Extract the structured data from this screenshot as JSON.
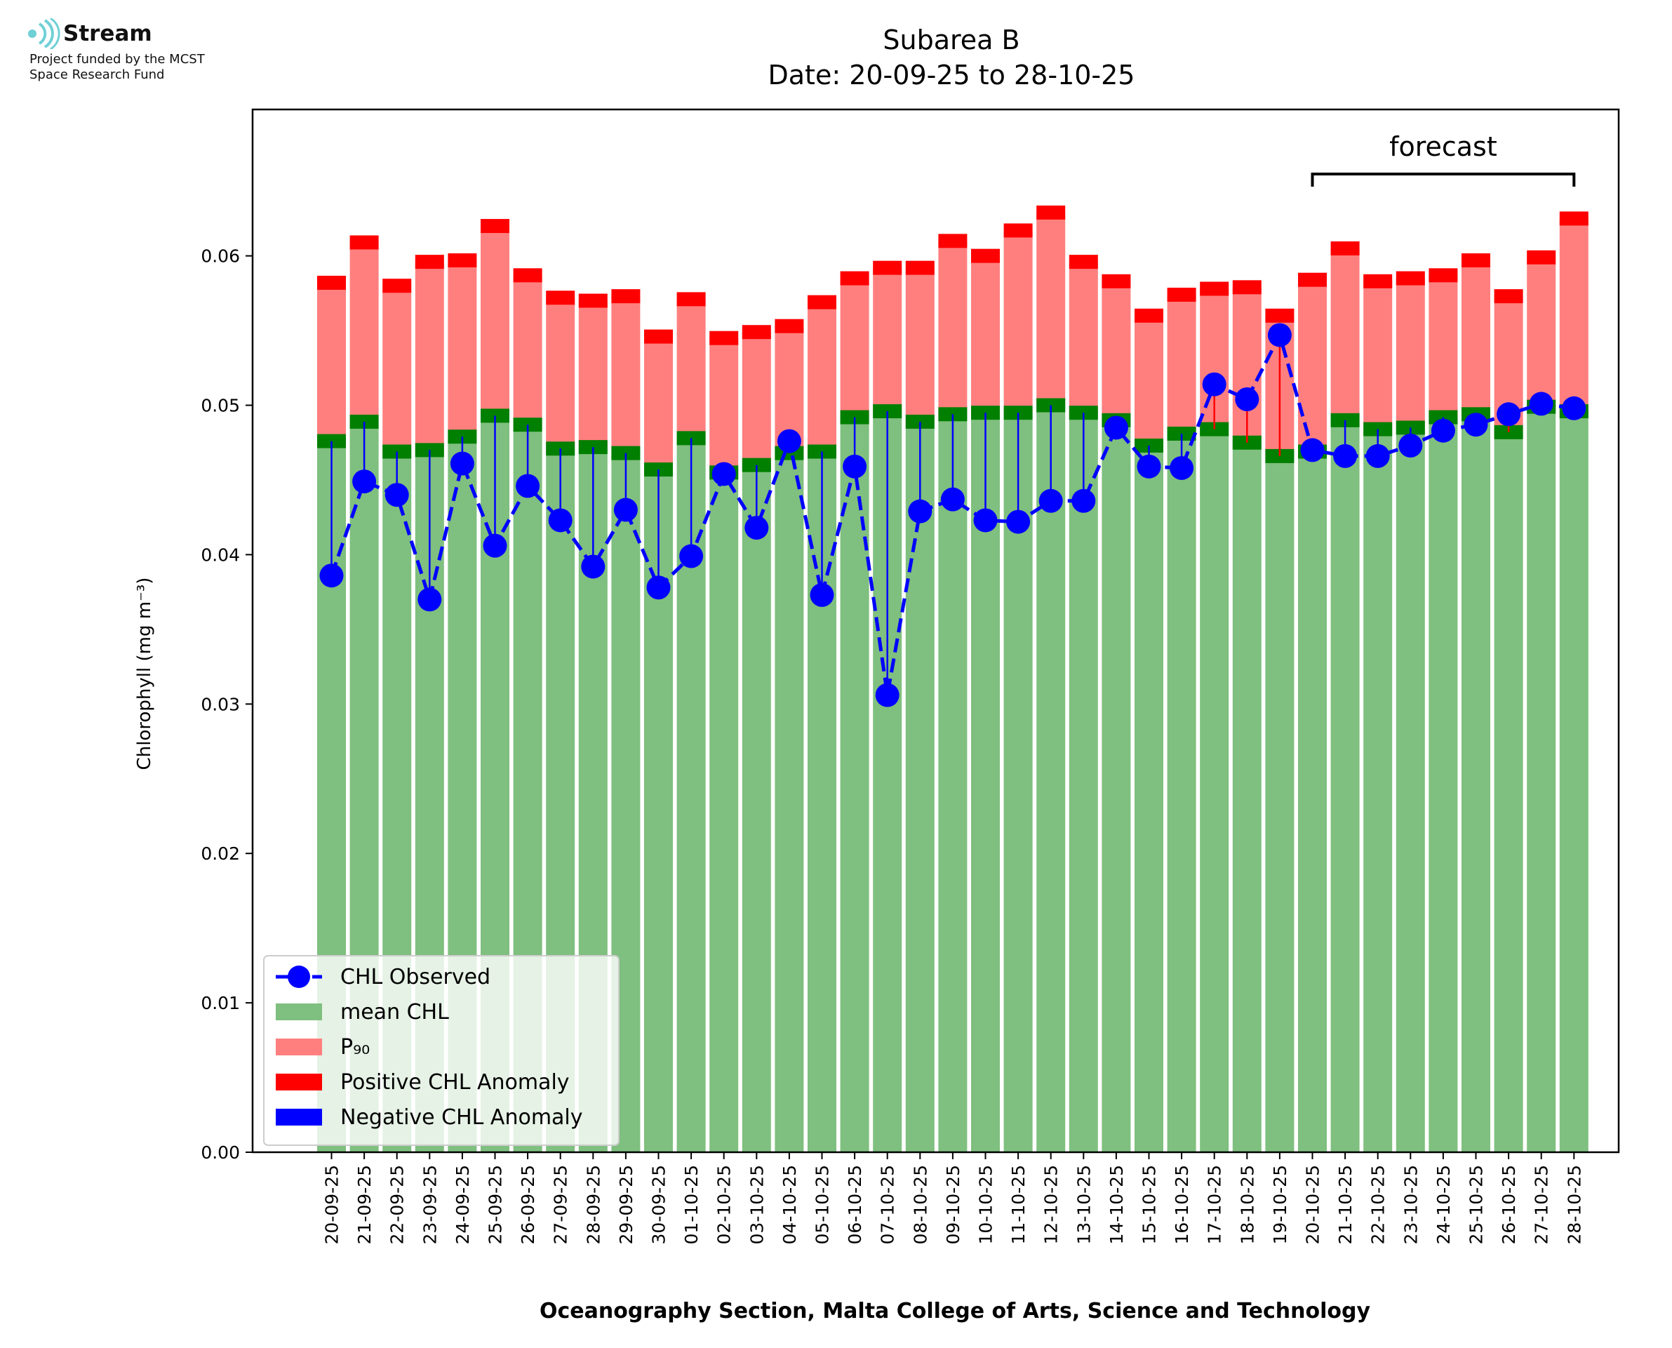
{
  "logo": {
    "name": "Stream",
    "line1": "Project funded by the MCST",
    "line2": "Space Research Fund",
    "accent_color": "#6fd0d6"
  },
  "chart_data": {
    "type": "bar",
    "title": "Subarea B",
    "subtitle": "Date: 20-09-25 to 28-10-25",
    "xlabel": "Oceanography Section, Malta College of Arts, Science and Technology",
    "ylabel": "Chlorophyll (mg m⁻³)",
    "ylim": [
      0,
      0.0698
    ],
    "yticks": [
      0.0,
      0.01,
      0.02,
      0.03,
      0.04,
      0.05,
      0.06
    ],
    "ytick_labels": [
      "0.00",
      "0.01",
      "0.02",
      "0.03",
      "0.04",
      "0.05",
      "0.06"
    ],
    "categories": [
      "20-09-25",
      "21-09-25",
      "22-09-25",
      "23-09-25",
      "24-09-25",
      "25-09-25",
      "26-09-25",
      "27-09-25",
      "28-09-25",
      "29-09-25",
      "30-09-25",
      "01-10-25",
      "02-10-25",
      "03-10-25",
      "04-10-25",
      "05-10-25",
      "06-10-25",
      "07-10-25",
      "08-10-25",
      "09-10-25",
      "10-10-25",
      "11-10-25",
      "12-10-25",
      "13-10-25",
      "14-10-25",
      "15-10-25",
      "16-10-25",
      "17-10-25",
      "18-10-25",
      "19-10-25",
      "20-10-25",
      "21-10-25",
      "22-10-25",
      "23-10-25",
      "24-10-25",
      "25-10-25",
      "26-10-25",
      "27-10-25",
      "28-10-25"
    ],
    "series": [
      {
        "name": "CHL Observed",
        "kind": "line",
        "color": "#0000ff",
        "values": [
          0.0386,
          0.0449,
          0.044,
          0.037,
          0.0461,
          0.0406,
          0.0446,
          0.0423,
          0.0392,
          0.043,
          0.0378,
          0.0399,
          0.0454,
          0.0418,
          0.0476,
          0.0373,
          0.0459,
          0.0306,
          0.0429,
          0.0437,
          0.0423,
          0.0422,
          0.0436,
          0.0436,
          0.0485,
          0.0459,
          0.0458,
          0.0514,
          0.0504,
          0.0547,
          0.047,
          0.0466,
          0.0466,
          0.0473,
          0.0483,
          0.0487,
          0.0494,
          0.0501,
          0.0498
        ]
      },
      {
        "name": "mean CHL",
        "kind": "bar",
        "color": "#7fbf7f",
        "values": [
          0.0476,
          0.0489,
          0.0469,
          0.047,
          0.0479,
          0.0493,
          0.0487,
          0.0471,
          0.0472,
          0.0468,
          0.0457,
          0.0478,
          0.0455,
          0.046,
          0.0468,
          0.0469,
          0.0492,
          0.0496,
          0.0489,
          0.0494,
          0.0495,
          0.0495,
          0.05,
          0.0495,
          0.049,
          0.0473,
          0.0481,
          0.0484,
          0.0475,
          0.0466,
          0.0469,
          0.049,
          0.0484,
          0.0485,
          0.0492,
          0.0494,
          0.0482,
          0.0499,
          0.0496
        ]
      },
      {
        "name": "P₉₀",
        "kind": "bar",
        "color": "#ff7f7f",
        "values": [
          0.0582,
          0.0609,
          0.058,
          0.0596,
          0.0597,
          0.062,
          0.0587,
          0.0572,
          0.057,
          0.0573,
          0.0546,
          0.0571,
          0.0545,
          0.0549,
          0.0553,
          0.0569,
          0.0585,
          0.0592,
          0.0592,
          0.061,
          0.06,
          0.0617,
          0.0629,
          0.0596,
          0.0583,
          0.056,
          0.0574,
          0.0578,
          0.0579,
          0.056,
          0.0584,
          0.0605,
          0.0583,
          0.0585,
          0.0587,
          0.0597,
          0.0573,
          0.0599,
          0.0625
        ]
      },
      {
        "name": "Positive CHL Anomaly",
        "kind": "marker",
        "color": "#ff0000"
      },
      {
        "name": "Negative CHL Anomaly",
        "kind": "marker",
        "color": "#0000ff"
      }
    ],
    "legend": [
      "CHL Observed",
      "mean CHL",
      "P₉₀",
      "Positive CHL Anomaly",
      "Negative CHL Anomaly"
    ],
    "legend_position": "lower-left",
    "annotation": {
      "text": "forecast",
      "from": "20-10-25",
      "to": "28-10-25"
    },
    "colors": {
      "positive": "#ff0000",
      "negative": "#0000ff",
      "mean_cap": "#007f00",
      "p90_cap": "#ff0000",
      "axis": "#000000"
    }
  }
}
